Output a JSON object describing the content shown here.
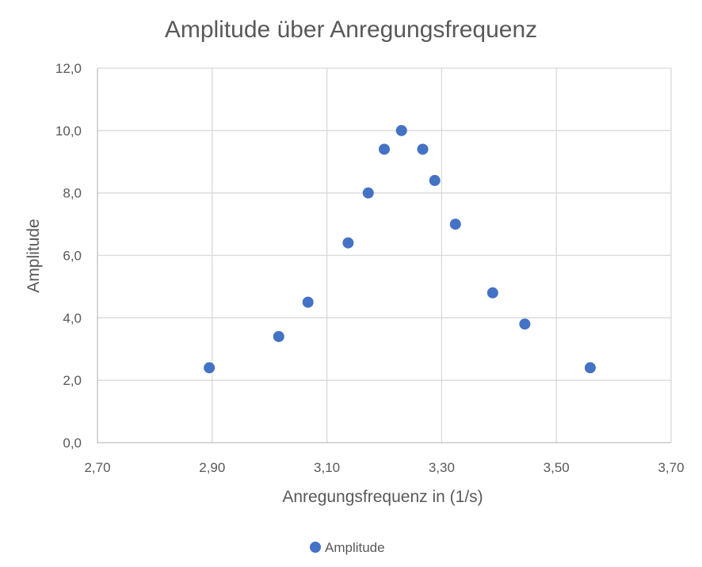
{
  "chart_data": {
    "type": "scatter",
    "title": "Amplitude über Anregungsfrequenz",
    "xlabel": "Anregungsfrequenz in (1/s)",
    "ylabel": "Amplitude",
    "xlim": [
      2.7,
      3.7
    ],
    "ylim": [
      0,
      12
    ],
    "x_ticks": [
      "2,70",
      "2,90",
      "3,10",
      "3,30",
      "3,50",
      "3,70"
    ],
    "x_tick_values": [
      2.7,
      2.9,
      3.1,
      3.3,
      3.5,
      3.7
    ],
    "y_ticks": [
      "0,0",
      "2,0",
      "4,0",
      "6,0",
      "8,0",
      "10,0",
      "12,0"
    ],
    "y_tick_values": [
      0,
      2,
      4,
      6,
      8,
      10,
      12
    ],
    "grid": true,
    "legend_position": "bottom",
    "series": [
      {
        "name": "Amplitude",
        "color": "#4472C4",
        "points": [
          {
            "x": 2.895,
            "y": 2.4
          },
          {
            "x": 3.016,
            "y": 3.4
          },
          {
            "x": 3.067,
            "y": 4.5
          },
          {
            "x": 3.137,
            "y": 6.4
          },
          {
            "x": 3.172,
            "y": 8.0
          },
          {
            "x": 3.2,
            "y": 9.4
          },
          {
            "x": 3.23,
            "y": 10.0
          },
          {
            "x": 3.267,
            "y": 9.4
          },
          {
            "x": 3.288,
            "y": 8.4
          },
          {
            "x": 3.324,
            "y": 7.0
          },
          {
            "x": 3.389,
            "y": 4.8
          },
          {
            "x": 3.445,
            "y": 3.8
          },
          {
            "x": 3.559,
            "y": 2.4
          }
        ]
      }
    ],
    "colors": {
      "grid": "#d9d9d9",
      "text": "#595959",
      "axis": "#bfbfbf"
    }
  }
}
